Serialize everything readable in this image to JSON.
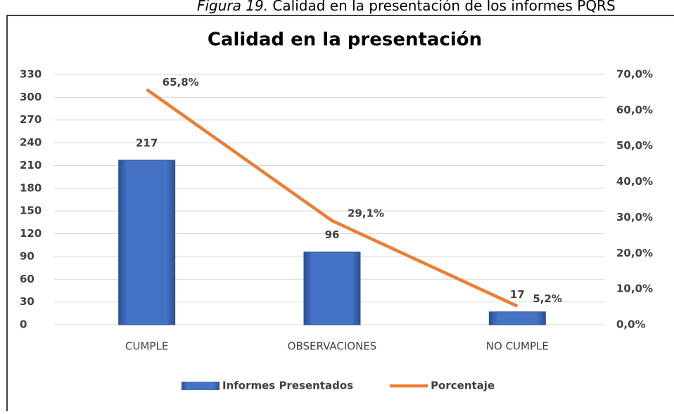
{
  "caption": {
    "label": "Figura 19.",
    "text": " Calidad en la presentación de los informes PQRS"
  },
  "chart_data": {
    "type": "bar",
    "title": "Calidad en la presentación",
    "categories": [
      "CUMPLE",
      "OBSERVACIONES",
      "NO CUMPLE"
    ],
    "series": [
      {
        "name": "Informes Presentados",
        "type": "bar",
        "color": "#4472c4",
        "values": [
          217,
          96,
          17
        ]
      },
      {
        "name": "Porcentaje",
        "type": "line",
        "axis": "y2",
        "color": "#ed7d31",
        "values": [
          65.8,
          29.1,
          5.2
        ],
        "value_labels": [
          "65,8%",
          "29,1%",
          "5,2%"
        ]
      }
    ],
    "ylim": [
      0,
      330
    ],
    "yticks": [
      0,
      30,
      60,
      90,
      120,
      150,
      180,
      210,
      240,
      270,
      300,
      330
    ],
    "y2lim": [
      0,
      70
    ],
    "y2ticks": [
      {
        "value": 0,
        "label": "0,0%"
      },
      {
        "value": 10,
        "label": "10,0%"
      },
      {
        "value": 20,
        "label": "20,0%"
      },
      {
        "value": 30,
        "label": "30,0%"
      },
      {
        "value": 40,
        "label": "40,0%"
      },
      {
        "value": 50,
        "label": "50,0%"
      },
      {
        "value": 60,
        "label": "60,0%"
      },
      {
        "value": 70,
        "label": "70,0%"
      }
    ],
    "grid": true,
    "legend": "bottom"
  }
}
